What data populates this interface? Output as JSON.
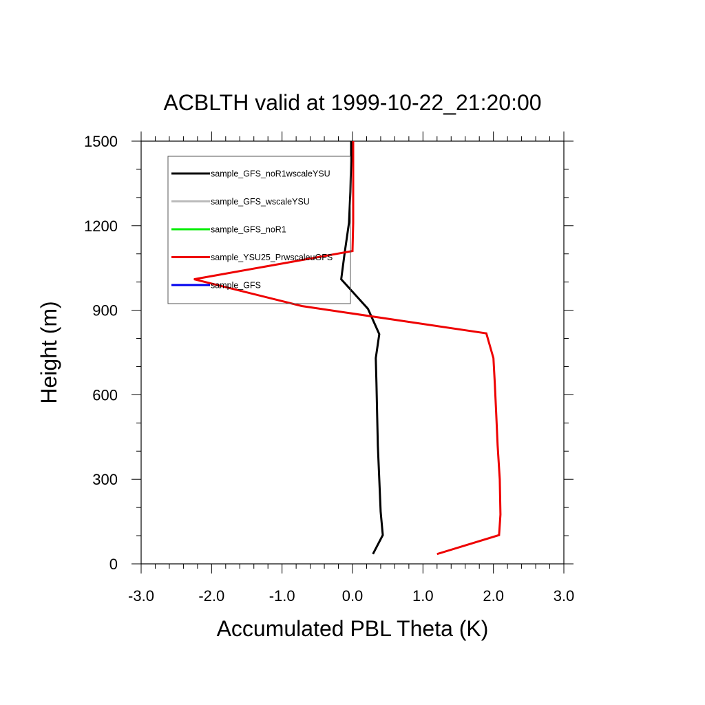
{
  "chart_data": {
    "type": "line",
    "title": "ACBLTH valid at 1999-10-22_21:20:00",
    "xlabel": "Accumulated PBL Theta (K)",
    "ylabel": "Height (m)",
    "xlim": [
      -3.0,
      3.0
    ],
    "ylim": [
      0,
      1500
    ],
    "xticks": [
      -3.0,
      -2.0,
      -1.0,
      0.0,
      1.0,
      2.0,
      3.0
    ],
    "xtick_labels": [
      "-3.0",
      "-2.0",
      "-1.0",
      "0.0",
      "1.0",
      "2.0",
      "3.0"
    ],
    "yticks": [
      0,
      300,
      600,
      900,
      1200,
      1500
    ],
    "ytick_labels": [
      "0",
      "300",
      "600",
      "900",
      "1200",
      "1500"
    ],
    "grid": false,
    "legend_position": "top-left",
    "series": [
      {
        "name": "sample_GFS_noR1wscaleYSU",
        "color": "#000000",
        "x": [
          0.29,
          0.43,
          0.4,
          0.38,
          0.36,
          0.35,
          0.34,
          0.33,
          0.38,
          0.22,
          -0.16,
          -0.11,
          -0.05,
          -0.03,
          -0.02,
          -0.02
        ],
        "y": [
          35,
          102,
          185,
          300,
          420,
          530,
          640,
          730,
          815,
          905,
          1010,
          1105,
          1210,
          1320,
          1430,
          1500
        ]
      },
      {
        "name": "sample_GFS_wscaleYSU",
        "color": "#bbbbbb",
        "x": [],
        "y": []
      },
      {
        "name": "sample_GFS_noR1",
        "color": "#00ee00",
        "x": [],
        "y": []
      },
      {
        "name": "sample_YSU25_PrwscaleuGFS",
        "color": "#ee0000",
        "x": [
          1.2,
          2.08,
          2.1,
          2.09,
          2.06,
          2.04,
          2.02,
          2.0,
          1.9,
          -0.72,
          -2.25,
          0.0,
          0.01,
          0.01,
          0.01,
          0.01
        ],
        "y": [
          35,
          102,
          175,
          300,
          420,
          530,
          640,
          730,
          818,
          915,
          1010,
          1110,
          1210,
          1320,
          1430,
          1500
        ]
      },
      {
        "name": "sample_GFS",
        "color": "#0000ee",
        "x": [],
        "y": []
      }
    ]
  }
}
